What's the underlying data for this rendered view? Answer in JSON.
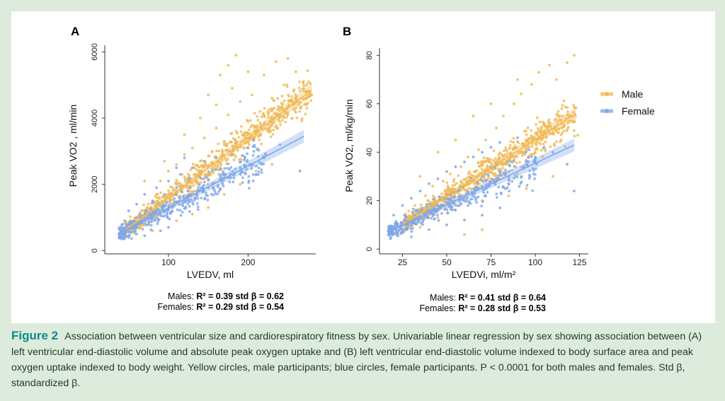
{
  "figure": {
    "panels": [
      {
        "panel_label": "A",
        "stats": {
          "males_prefix": "Males: ",
          "males_values": "R² = 0.39  std β = 0.62",
          "females_prefix": "Females: ",
          "females_values": "R² = 0.29  std β = 0.54"
        }
      },
      {
        "panel_label": "B",
        "stats": {
          "males_prefix": "Males: ",
          "males_values": "R² = 0.41  std β = 0.64",
          "females_prefix": "Females: ",
          "females_values": "R² = 0.28  std β = 0.53"
        }
      }
    ],
    "legend": {
      "items": [
        "Male",
        "Female"
      ]
    }
  },
  "caption": {
    "label": "Figure 2",
    "text": "Association between ventricular size and cardiorespiratory fitness by sex. Univariable linear regression by sex showing association between (A) left ventricular end-diastolic volume and absolute peak oxygen uptake and (B) left ventricular end-diastolic volume indexed to body surface area and peak oxygen uptake indexed to body weight. Yellow circles, male participants; blue circles, female participants. P < 0.0001 for both males and females. Std β, standardized β."
  },
  "colors": {
    "male": "#f0b955",
    "female": "#7ea6e8",
    "background": "#dcebdc",
    "caption_label": "#0a8a8a"
  },
  "chart_data": [
    {
      "type": "scatter",
      "title": "A",
      "xlabel": "LVEDV, ml",
      "ylabel": "Peak VO2 , ml/min",
      "xlim": [
        20,
        285
      ],
      "ylim": [
        -100,
        6200
      ],
      "xticks": [
        100,
        200
      ],
      "yticks": [
        0,
        2000,
        4000,
        6000
      ],
      "grid": false,
      "legend": "none",
      "series": [
        {
          "name": "Male",
          "color": "#f0b955",
          "x_range": [
            45,
            280
          ],
          "regression": {
            "x": [
              45,
              280
            ],
            "y": [
              600,
              4850
            ]
          },
          "points": [
            [
              60,
              900
            ],
            [
              75,
              1400
            ],
            [
              85,
              1700
            ],
            [
              90,
              2100
            ],
            [
              95,
              1200
            ],
            [
              100,
              2400
            ],
            [
              105,
              1900
            ],
            [
              110,
              2600
            ],
            [
              115,
              1500
            ],
            [
              120,
              2900
            ],
            [
              125,
              2200
            ],
            [
              130,
              3100
            ],
            [
              135,
              1800
            ],
            [
              140,
              2700
            ],
            [
              145,
              3400
            ],
            [
              150,
              2300
            ],
            [
              155,
              3000
            ],
            [
              160,
              3700
            ],
            [
              165,
              2500
            ],
            [
              170,
              3300
            ],
            [
              175,
              4100
            ],
            [
              180,
              2900
            ],
            [
              185,
              3600
            ],
            [
              190,
              4500
            ],
            [
              195,
              3100
            ],
            [
              200,
              3900
            ],
            [
              205,
              4700
            ],
            [
              210,
              3500
            ],
            [
              215,
              4200
            ],
            [
              220,
              5300
            ],
            [
              225,
              3800
            ],
            [
              230,
              4600
            ],
            [
              235,
              5700
            ],
            [
              240,
              4300
            ],
            [
              245,
              5000
            ],
            [
              250,
              5800
            ],
            [
              255,
              4500
            ],
            [
              260,
              5400
            ],
            [
              270,
              4900
            ],
            [
              280,
              4700
            ],
            [
              70,
              2100
            ],
            [
              80,
              600
            ],
            [
              95,
              2700
            ],
            [
              110,
              900
            ],
            [
              120,
              3500
            ],
            [
              130,
              1100
            ],
            [
              140,
              4000
            ],
            [
              150,
              1300
            ],
            [
              160,
              4400
            ],
            [
              170,
              1700
            ],
            [
              180,
              4900
            ],
            [
              190,
              2000
            ],
            [
              200,
              5400
            ],
            [
              210,
              2400
            ],
            [
              230,
              2600
            ],
            [
              240,
              3900
            ],
            [
              165,
              5300
            ],
            [
              175,
              5600
            ],
            [
              185,
              5900
            ],
            [
              150,
              4700
            ]
          ]
        },
        {
          "name": "Female",
          "color": "#7ea6e8",
          "x_range": [
            38,
            270
          ],
          "regression": {
            "x": [
              38,
              270
            ],
            "y": [
              500,
              3450
            ]
          },
          "points": [
            [
              40,
              600
            ],
            [
              45,
              900
            ],
            [
              50,
              1200
            ],
            [
              55,
              700
            ],
            [
              60,
              1400
            ],
            [
              65,
              1000
            ],
            [
              70,
              1700
            ],
            [
              75,
              800
            ],
            [
              80,
              1500
            ],
            [
              85,
              1900
            ],
            [
              90,
              1100
            ],
            [
              95,
              1700
            ],
            [
              100,
              2100
            ],
            [
              105,
              1300
            ],
            [
              110,
              1900
            ],
            [
              115,
              2300
            ],
            [
              120,
              1500
            ],
            [
              125,
              2100
            ],
            [
              130,
              2500
            ],
            [
              135,
              1700
            ],
            [
              140,
              2200
            ],
            [
              145,
              2700
            ],
            [
              150,
              1900
            ],
            [
              155,
              2400
            ],
            [
              160,
              2800
            ],
            [
              170,
              2300
            ],
            [
              180,
              2900
            ],
            [
              190,
              2500
            ],
            [
              200,
              3100
            ],
            [
              220,
              2800
            ],
            [
              240,
              3200
            ],
            [
              265,
              2400
            ],
            [
              50,
              400
            ],
            [
              60,
              500
            ],
            [
              70,
              450
            ],
            [
              80,
              1100
            ],
            [
              90,
              600
            ],
            [
              100,
              700
            ],
            [
              110,
              2500
            ],
            [
              120,
              2800
            ]
          ]
        }
      ]
    },
    {
      "type": "scatter",
      "title": "B",
      "xlabel": "LVEDVi, ml/m²",
      "ylabel": "Peak VO2, ml/kg/min",
      "xlim": [
        12,
        130
      ],
      "ylim": [
        -2,
        83
      ],
      "xticks": [
        25,
        50,
        75,
        100,
        125
      ],
      "yticks": [
        0,
        20,
        40,
        60,
        80
      ],
      "grid": false,
      "legend": "top-right",
      "series": [
        {
          "name": "Male",
          "color": "#f0b955",
          "x_range": [
            25,
            123
          ],
          "regression": {
            "x": [
              25,
              123
            ],
            "y": [
              10,
              56
            ]
          },
          "points": [
            [
              28,
              12
            ],
            [
              32,
              18
            ],
            [
              35,
              9
            ],
            [
              38,
              22
            ],
            [
              40,
              15
            ],
            [
              42,
              26
            ],
            [
              45,
              13
            ],
            [
              48,
              28
            ],
            [
              50,
              19
            ],
            [
              52,
              31
            ],
            [
              55,
              16
            ],
            [
              58,
              34
            ],
            [
              60,
              22
            ],
            [
              62,
              38
            ],
            [
              65,
              25
            ],
            [
              68,
              41
            ],
            [
              70,
              20
            ],
            [
              72,
              45
            ],
            [
              75,
              29
            ],
            [
              78,
              50
            ],
            [
              80,
              33
            ],
            [
              82,
              55
            ],
            [
              85,
              37
            ],
            [
              88,
              60
            ],
            [
              90,
              31
            ],
            [
              92,
              64
            ],
            [
              95,
              45
            ],
            [
              98,
              68
            ],
            [
              100,
              40
            ],
            [
              102,
              73
            ],
            [
              105,
              52
            ],
            [
              108,
              76
            ],
            [
              110,
              48
            ],
            [
              112,
              70
            ],
            [
              115,
              58
            ],
            [
              118,
              77
            ],
            [
              120,
              53
            ],
            [
              122,
              80
            ],
            [
              124,
              47
            ],
            [
              110,
              30
            ],
            [
              95,
              25
            ],
            [
              85,
              22
            ],
            [
              75,
              60
            ],
            [
              65,
              55
            ],
            [
              55,
              45
            ],
            [
              45,
              40
            ],
            [
              35,
              30
            ],
            [
              70,
              8
            ],
            [
              60,
              6
            ],
            [
              90,
              70
            ]
          ]
        },
        {
          "name": "Female",
          "color": "#7ea6e8",
          "x_range": [
            17,
            122
          ],
          "regression": {
            "x": [
              17,
              122
            ],
            "y": [
              7,
              43
            ]
          },
          "points": [
            [
              18,
              8
            ],
            [
              20,
              14
            ],
            [
              22,
              6
            ],
            [
              25,
              18
            ],
            [
              28,
              10
            ],
            [
              30,
              21
            ],
            [
              32,
              12
            ],
            [
              35,
              24
            ],
            [
              38,
              14
            ],
            [
              40,
              27
            ],
            [
              42,
              16
            ],
            [
              45,
              29
            ],
            [
              48,
              18
            ],
            [
              50,
              32
            ],
            [
              52,
              20
            ],
            [
              55,
              34
            ],
            [
              58,
              22
            ],
            [
              60,
              36
            ],
            [
              62,
              18
            ],
            [
              65,
              38
            ],
            [
              68,
              25
            ],
            [
              70,
              40
            ],
            [
              72,
              22
            ],
            [
              75,
              42
            ],
            [
              78,
              28
            ],
            [
              80,
              44
            ],
            [
              85,
              30
            ],
            [
              90,
              46
            ],
            [
              95,
              35
            ],
            [
              100,
              38
            ],
            [
              105,
              42
            ],
            [
              110,
              40
            ],
            [
              118,
              35
            ],
            [
              122,
              24
            ],
            [
              30,
              5
            ],
            [
              40,
              8
            ],
            [
              50,
              10
            ],
            [
              60,
              12
            ],
            [
              70,
              14
            ],
            [
              80,
              17
            ]
          ]
        }
      ]
    }
  ]
}
